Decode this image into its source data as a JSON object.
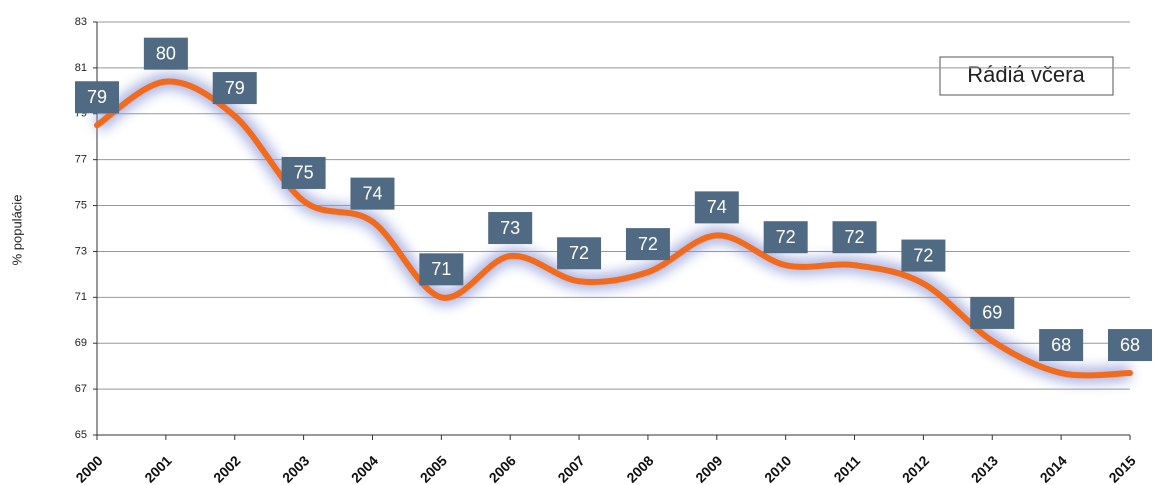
{
  "chart_data": {
    "type": "line",
    "legend_text": "Rádiá včera",
    "y_label": "% populácie",
    "categories": [
      "2000",
      "2001",
      "2002",
      "2003",
      "2004",
      "2005",
      "2006",
      "2007",
      "2008",
      "2009",
      "2010",
      "2011",
      "2012",
      "2013",
      "2014",
      "2015"
    ],
    "series": [
      {
        "name": "Rádiá včera",
        "color": "#f26a1b",
        "values": [
          78.5,
          80.4,
          78.9,
          75.2,
          74.3,
          71.0,
          72.8,
          71.7,
          72.1,
          73.7,
          72.4,
          72.4,
          71.6,
          69.1,
          67.7,
          67.7
        ],
        "value_labels": [
          "79",
          "80",
          "79",
          "75",
          "74",
          "71",
          "73",
          "72",
          "72",
          "74",
          "72",
          "72",
          "72",
          "69",
          "68",
          "68"
        ]
      }
    ],
    "ylim": [
      65,
      83
    ],
    "yticks": [
      65,
      67,
      69,
      71,
      73,
      75,
      77,
      79,
      81,
      83
    ],
    "grid": true
  }
}
